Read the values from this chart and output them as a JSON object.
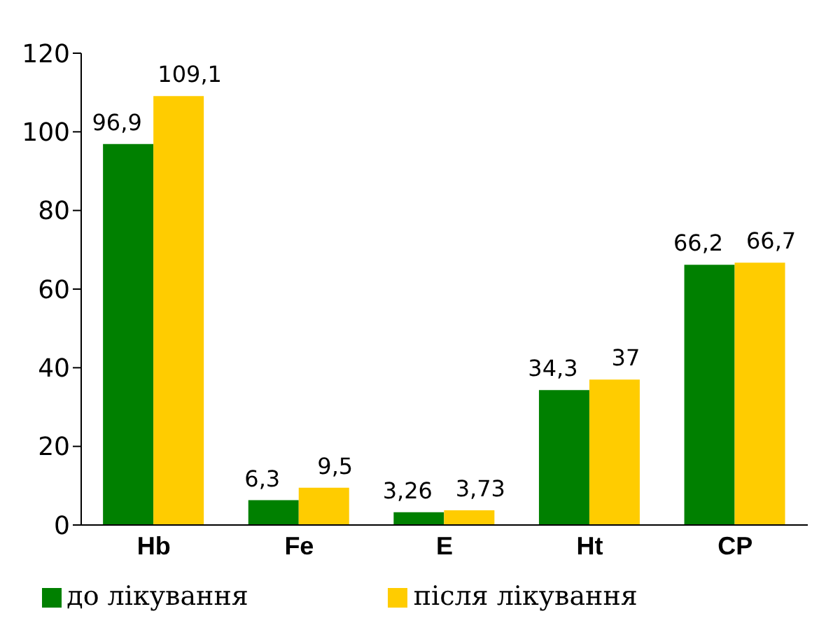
{
  "chart_data": {
    "type": "bar",
    "categories": [
      "Hb",
      "Fe",
      "E",
      "Ht",
      "CP"
    ],
    "series": [
      {
        "name": "до лікування",
        "color": "#008000",
        "values": [
          96.9,
          6.3,
          3.26,
          34.3,
          66.2
        ],
        "value_labels": [
          "96,9",
          "6,3",
          "3,26",
          "34,3",
          "66,2"
        ]
      },
      {
        "name": "після лікування",
        "color": "#ffcc00",
        "values": [
          109.1,
          9.5,
          3.73,
          37,
          66.7
        ],
        "value_labels": [
          "109,1",
          "9,5",
          "3,73",
          "37",
          "66,7"
        ]
      }
    ],
    "ylim": [
      0,
      120
    ],
    "yticks": [
      0,
      20,
      40,
      60,
      80,
      100,
      120
    ],
    "grid": false,
    "legend": "bottom"
  }
}
